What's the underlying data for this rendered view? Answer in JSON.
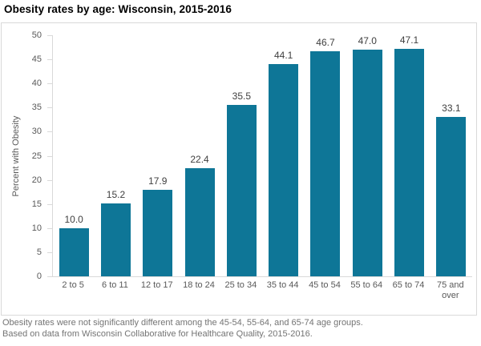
{
  "chart_data": {
    "type": "bar",
    "title": "Obesity rates by age: Wisconsin, 2015-2016",
    "xlabel": "",
    "ylabel": "Percent with Obesity",
    "categories": [
      "2 to 5",
      "6 to 11",
      "12 to 17",
      "18 to 24",
      "25 to 34",
      "35 to 44",
      "45 to 54",
      "55 to 64",
      "65 to 74",
      "75 and over"
    ],
    "values": [
      10.0,
      15.2,
      17.9,
      22.4,
      35.5,
      44.1,
      46.7,
      47.0,
      47.1,
      33.1
    ],
    "value_labels": [
      "10.0",
      "15.2",
      "17.9",
      "22.4",
      "35.5",
      "44.1",
      "46.7",
      "47.0",
      "47.1",
      "33.1"
    ],
    "ylim": [
      0,
      50
    ],
    "ytick_step": 5,
    "grid": false,
    "legend": "none",
    "bar_color": "#0e7697",
    "axis_color": "#d9d9d9",
    "tick_label_color": "#595959",
    "value_label_color": "#3f3f3f"
  },
  "footer": {
    "line1": "Obesity rates were not significantly different among the 45-54, 55-64, and 65-74 age groups.",
    "line2": "Based on data from Wisconsin Collaborative for Healthcare Quality, 2015-2016."
  }
}
